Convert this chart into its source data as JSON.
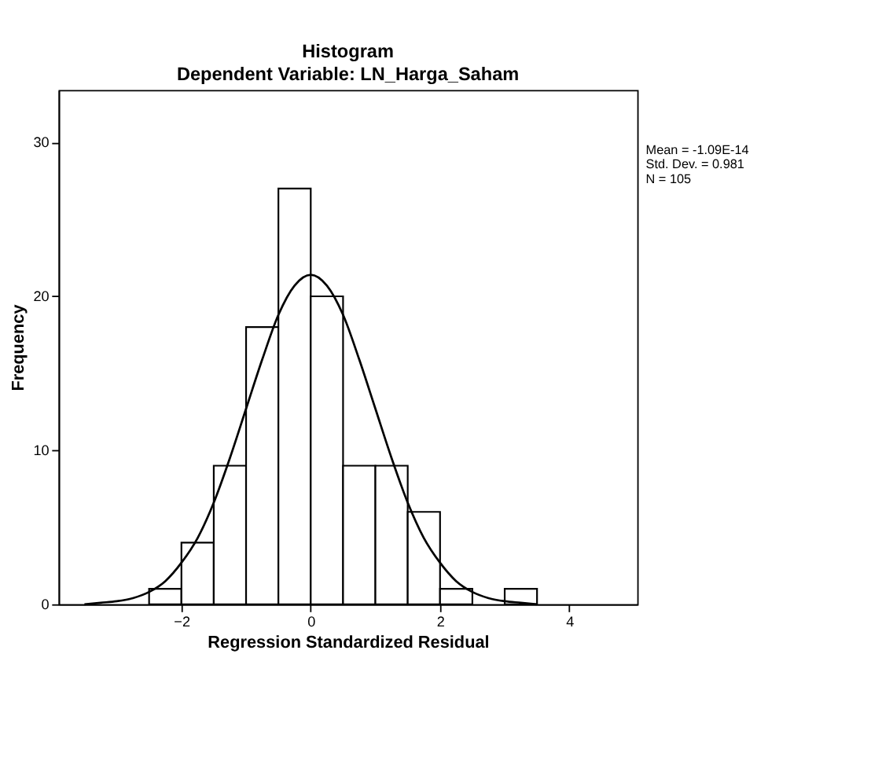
{
  "chart_data": {
    "type": "histogram",
    "title": "Histogram",
    "subtitle": "Dependent Variable: LN_Harga_Saham",
    "xlabel": "Regression Standardized Residual",
    "ylabel": "Frequency",
    "bins": [
      -2.5,
      -2.0,
      -1.5,
      -1.0,
      -0.5,
      0.0,
      0.5,
      1.0,
      1.5,
      2.0,
      2.5,
      3.0,
      3.5
    ],
    "values": [
      1,
      4,
      9,
      18,
      27,
      20,
      9,
      9,
      6,
      1,
      0,
      1
    ],
    "color": "#ffffff",
    "series": [
      {
        "type": "line",
        "color": "#000000",
        "x": [
          -3.5,
          -3.25,
          -3.0,
          -2.75,
          -2.5,
          -2.25,
          -2.0,
          -1.75,
          -1.5,
          -1.25,
          -1.0,
          -0.75,
          -0.5,
          -0.25,
          0.0,
          0.25,
          0.5,
          0.75,
          1.0,
          1.25,
          1.5,
          1.75,
          2.0,
          2.25,
          2.5,
          2.75,
          3.0,
          3.25,
          3.5
        ],
        "values": [
          0.0,
          0.1,
          0.2,
          0.4,
          0.8,
          1.5,
          2.7,
          4.3,
          6.6,
          9.5,
          12.7,
          15.9,
          18.8,
          20.7,
          21.4,
          20.7,
          18.8,
          15.9,
          12.7,
          9.5,
          6.6,
          4.3,
          2.7,
          1.5,
          0.8,
          0.4,
          0.2,
          0.1,
          0.0
        ]
      }
    ],
    "xlim": [
      -3.9,
      5.05
    ],
    "xticks": [
      -2,
      0,
      2,
      4
    ],
    "ylim": [
      0,
      33.4
    ],
    "yticks": [
      0,
      10,
      20,
      30
    ],
    "grid": false,
    "annotations": [
      "Mean = -1.09E-14",
      "Std. Dev. = 0.981",
      "N = 105"
    ]
  }
}
